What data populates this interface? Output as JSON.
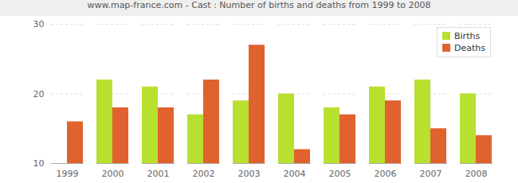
{
  "chart_data": {
    "type": "bar",
    "title": "www.map-france.com - Cast : Number of births and deaths from 1999 to 2008",
    "categories": [
      "1999",
      "2000",
      "2001",
      "2002",
      "2003",
      "2004",
      "2005",
      "2006",
      "2007",
      "2008"
    ],
    "series": [
      {
        "name": "Births",
        "color": "#b8e02e",
        "values": [
          10,
          22,
          21,
          17,
          19,
          20,
          18,
          21,
          22,
          20
        ]
      },
      {
        "name": "Deaths",
        "color": "#e0622e",
        "values": [
          16,
          18,
          18,
          22,
          27,
          12,
          17,
          19,
          15,
          14
        ]
      }
    ],
    "ylim": [
      10,
      30
    ],
    "yticks": [
      10,
      20,
      30
    ],
    "grid": true,
    "legend": "top-right"
  }
}
